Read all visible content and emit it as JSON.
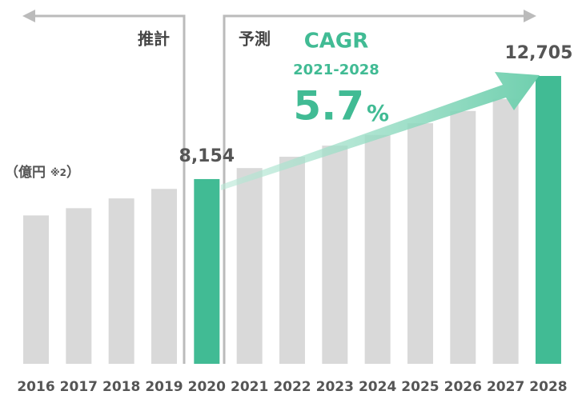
{
  "chart_data": {
    "type": "bar",
    "categories": [
      "2016",
      "2017",
      "2018",
      "2019",
      "2020",
      "2021",
      "2022",
      "2023",
      "2024",
      "2025",
      "2026",
      "2027",
      "2028"
    ],
    "values": [
      6550,
      6870,
      7300,
      7720,
      8154,
      8640,
      9140,
      9630,
      10100,
      10620,
      11160,
      11690,
      12705
    ],
    "value_labels": [
      null,
      null,
      null,
      null,
      "8,154",
      null,
      null,
      null,
      null,
      null,
      null,
      null,
      "12,705"
    ],
    "colors": [
      "#d9d9d9",
      "#d9d9d9",
      "#d9d9d9",
      "#d9d9d9",
      "#41bb94",
      "#d9d9d9",
      "#d9d9d9",
      "#d9d9d9",
      "#d9d9d9",
      "#d9d9d9",
      "#d9d9d9",
      "#d9d9d9",
      "#41bb94"
    ],
    "unit_label": "（億円",
    "unit_note": "※2",
    "unit_close": "）",
    "estimate_label": "推計",
    "forecast_label": "予測",
    "cagr": {
      "label": "CAGR",
      "period": "2021-2028",
      "value": 5.7,
      "unit": "%"
    }
  }
}
